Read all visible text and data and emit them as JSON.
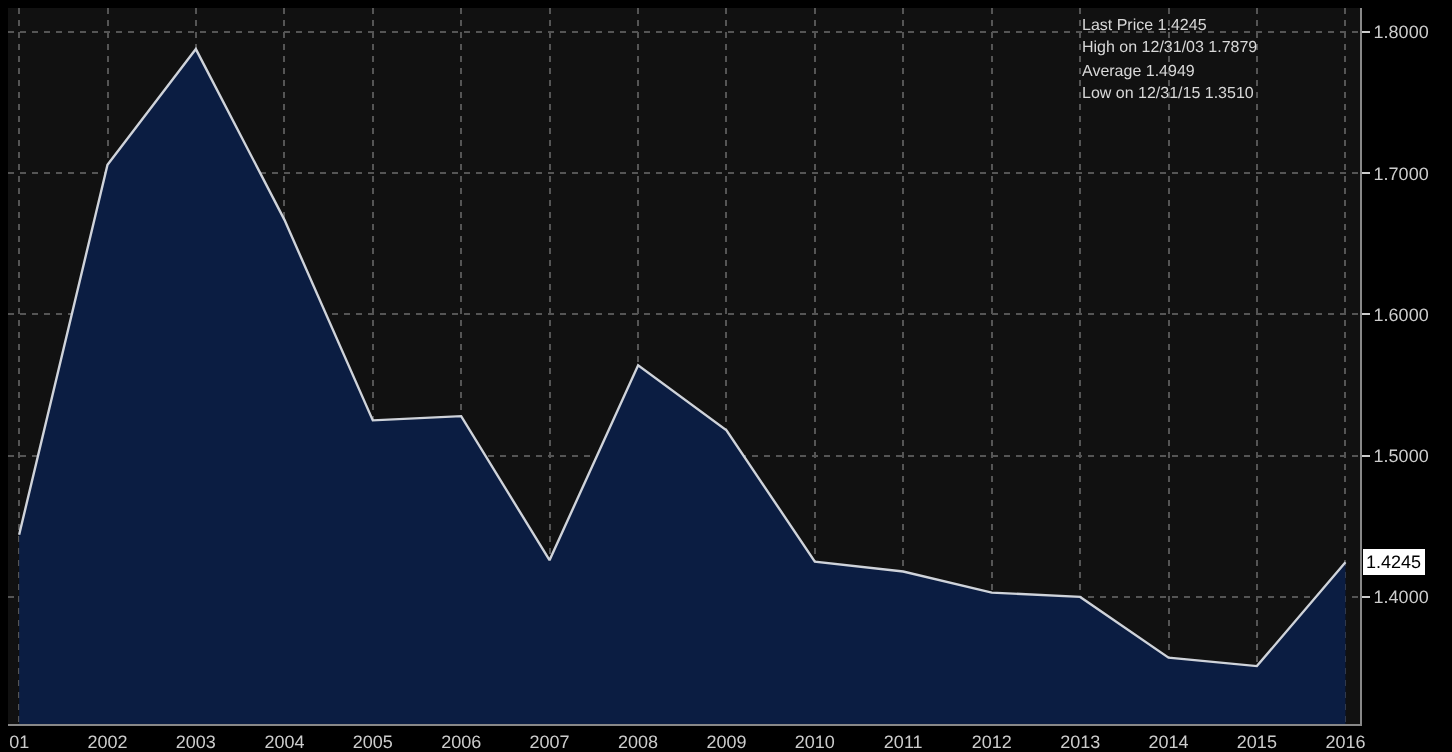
{
  "chart_data": {
    "type": "area",
    "x": [
      "2001-12-31",
      "2002-12-31",
      "2003-12-31",
      "2004-12-31",
      "2005-12-31",
      "2006-12-31",
      "2007-12-31",
      "2008-12-31",
      "2009-12-31",
      "2010-12-31",
      "2011-12-31",
      "2012-12-31",
      "2013-12-31",
      "2014-12-31",
      "2015-12-31",
      "2016-12-31"
    ],
    "series": [
      {
        "color": "#cfd3da",
        "values": [
          1.444,
          1.706,
          1.7879,
          1.667,
          1.525,
          1.528,
          1.426,
          1.564,
          1.518,
          1.425,
          1.418,
          1.403,
          1.4,
          1.357,
          1.351,
          1.4245
        ]
      }
    ],
    "xlim": [
      "2001-11-15",
      "2017-03-01"
    ],
    "xticks": [
      {
        "value": "2001-12-31",
        "label": "01"
      },
      {
        "value": "2002-12-31",
        "label": "2002"
      },
      {
        "value": "2003-12-31",
        "label": "2003"
      },
      {
        "value": "2004-12-31",
        "label": "2004"
      },
      {
        "value": "2005-12-31",
        "label": "2005"
      },
      {
        "value": "2006-12-31",
        "label": "2006"
      },
      {
        "value": "2007-12-31",
        "label": "2007"
      },
      {
        "value": "2008-12-31",
        "label": "2008"
      },
      {
        "value": "2009-12-31",
        "label": "2009"
      },
      {
        "value": "2010-12-31",
        "label": "2010"
      },
      {
        "value": "2011-12-31",
        "label": "2011"
      },
      {
        "value": "2012-12-31",
        "label": "2012"
      },
      {
        "value": "2013-12-31",
        "label": "2013"
      },
      {
        "value": "2014-12-31",
        "label": "2014"
      },
      {
        "value": "2015-12-31",
        "label": "2015"
      },
      {
        "value": "2016-12-31",
        "label": "2016"
      }
    ],
    "ylim": [
      1.31,
      1.817
    ],
    "yticks": [
      {
        "value": 1.4,
        "label": "1.4000"
      },
      {
        "value": 1.5,
        "label": "1.5000"
      },
      {
        "value": 1.6,
        "label": "1.6000"
      },
      {
        "value": 1.7,
        "label": "1.7000"
      },
      {
        "value": 1.8,
        "label": "1.8000"
      }
    ],
    "grid": true,
    "annotations": [
      "Last Price 1.4245",
      "High on 12/31/03 1.7879",
      "Average 1.4949",
      "Low on 12/31/15 1.3510",
      {
        "text": "1.4245",
        "x": "2016-12-31",
        "y": 1.4245
      }
    ]
  }
}
